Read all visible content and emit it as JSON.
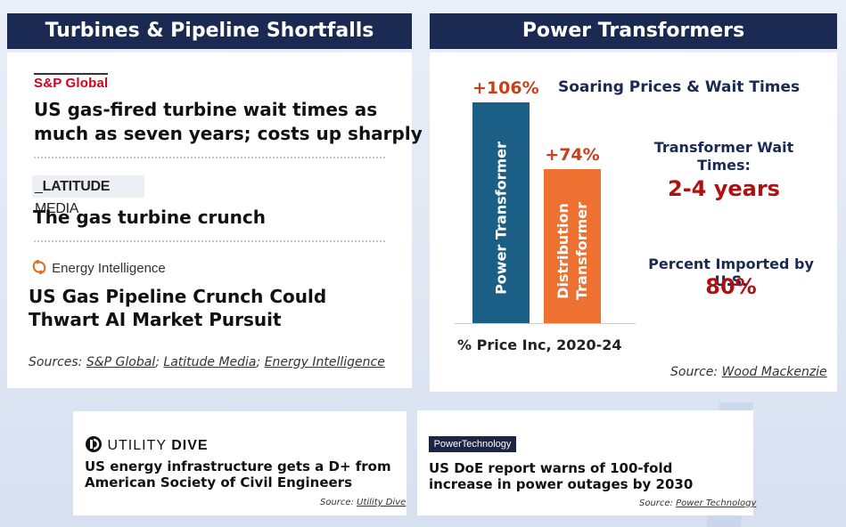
{
  "left_panel": {
    "header": "Turbines & Pipeline Shortfalls",
    "articles": [
      {
        "source_logo": "S&P Global",
        "headline_lines": [
          "US gas-fired turbine wait times as",
          "much as seven years; costs up sharply"
        ]
      },
      {
        "source_logo_prefix": "LATITUDE",
        "source_logo_suffix": " MEDIA",
        "headline_lines": [
          "The gas turbine crunch"
        ]
      },
      {
        "source_logo": "Energy Intelligence",
        "headline_lines": [
          "US Gas Pipeline Crunch Could",
          "Thwart AI Market Pursuit"
        ]
      }
    ],
    "sources_label": "Sources: ",
    "sources": [
      "S&P Global",
      "Latitude Media",
      "Energy Intelligence"
    ],
    "sep": "; "
  },
  "right_panel": {
    "header": "Power Transformers",
    "chart_title": "Soaring Prices & Wait Times",
    "stats": {
      "wait_title_1": "Transformer Wait",
      "wait_title_2": "Times:",
      "wait_value": "2-4 years",
      "import_title": "Percent Imported by U.S.",
      "import_value": "80%"
    },
    "source_label": "Source: ",
    "source_name": "Wood Mackenzie"
  },
  "chart_data": {
    "type": "bar",
    "title": "Soaring Prices & Wait Times",
    "xlabel": "% Price Inc, 2020-24",
    "ylabel": "",
    "categories": [
      "Power Transformer",
      "Distribution Transformer"
    ],
    "values": [
      106,
      74
    ],
    "data_labels": [
      "+106%",
      "+74%"
    ],
    "colors": [
      "#1b5f86",
      "#ee7132"
    ],
    "ylim": [
      0,
      106
    ],
    "grid": false
  },
  "bottom_cards": [
    {
      "logo_a": "UTILITY",
      "logo_b": "DIVE",
      "headline_lines": [
        "US energy infrastructure gets a D+ from",
        "American Society of Civil Engineers"
      ],
      "source_label": "Source: ",
      "source_name": "Utility Dive"
    },
    {
      "logo": "PowerTechnology",
      "headline_lines": [
        "US DoE report warns of 100-fold",
        "increase in power outages by 2030"
      ],
      "source_label": "Source: ",
      "source_name": "Power Technology"
    }
  ],
  "colors": {
    "header_bg": "#1a2a52",
    "accent_red": "#b01010",
    "bar_blue": "#1b5f86",
    "bar_orange": "#ee7132"
  }
}
